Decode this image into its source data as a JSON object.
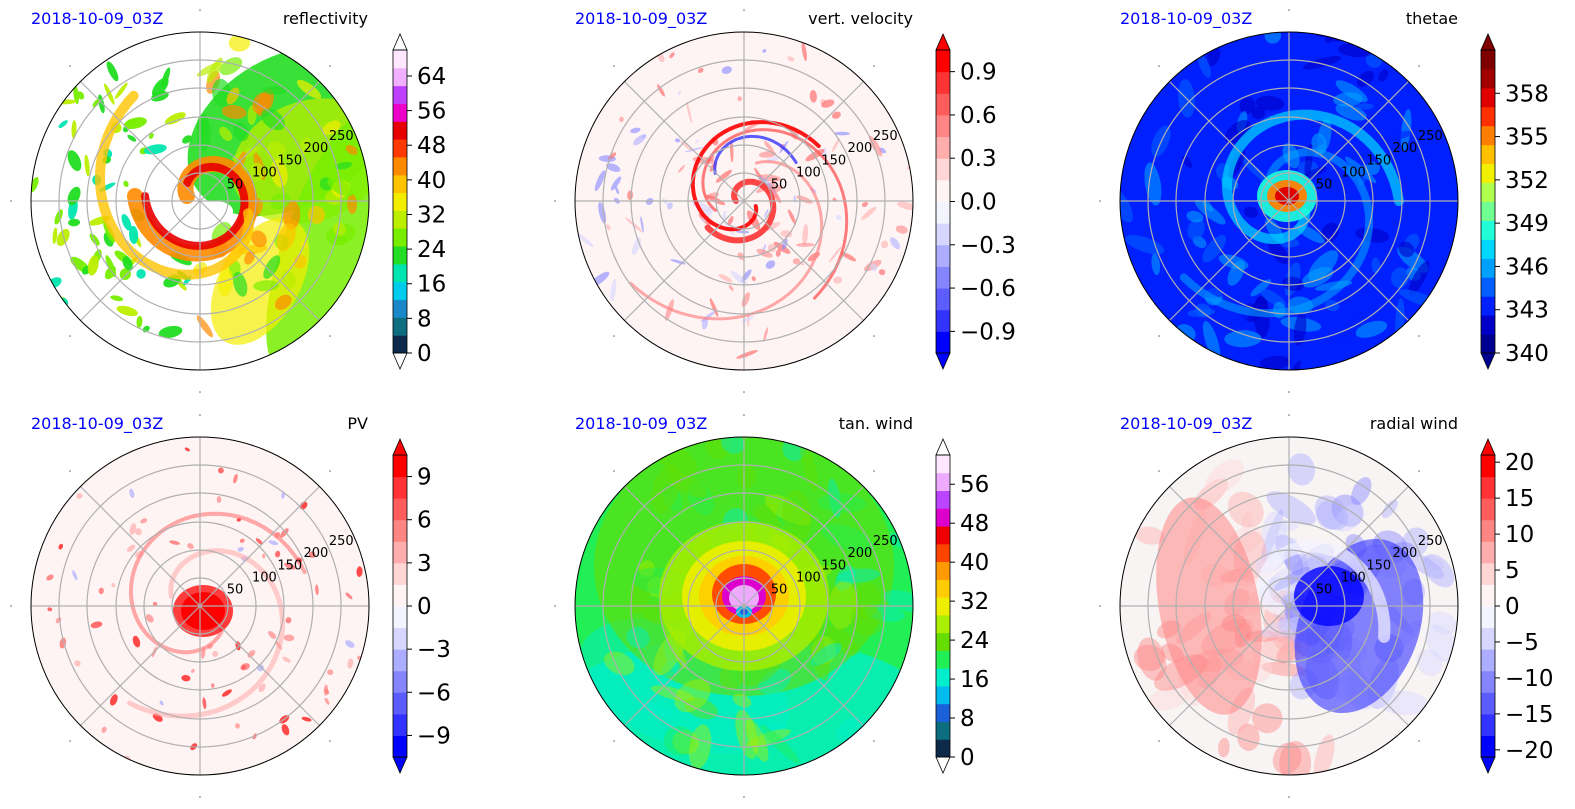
{
  "chart_data": [
    {
      "type": "heatmap",
      "projection": "polar",
      "time_label": "2018-10-09_03Z",
      "title": "reflectivity",
      "radial_ticks": [
        "50",
        "100",
        "150",
        "200",
        "250"
      ],
      "colorbar": {
        "ticks": [
          "0",
          "8",
          "16",
          "24",
          "32",
          "40",
          "48",
          "56",
          "64"
        ],
        "tick_values": [
          0,
          8,
          16,
          24,
          32,
          40,
          48,
          56,
          64
        ],
        "range": [
          0,
          70
        ],
        "extend": "both",
        "colors": [
          "#0d2a4a",
          "#0d6e80",
          "#1a88c8",
          "#00ccee",
          "#00e6b0",
          "#22dd22",
          "#77ee00",
          "#bbee00",
          "#f3ee00",
          "#ffc400",
          "#ff8a00",
          "#ff3a00",
          "#e80000",
          "#ee00cc",
          "#c040ff",
          "#f0b0ff",
          "#ffe8ff"
        ]
      }
    },
    {
      "type": "heatmap",
      "projection": "polar",
      "time_label": "2018-10-09_03Z",
      "title": "vert. velocity",
      "radial_ticks": [
        "50",
        "100",
        "150",
        "200",
        "250"
      ],
      "colorbar": {
        "ticks": [
          "0.9",
          "0.6",
          "0.3",
          "0.0",
          "−0.3",
          "−0.6",
          "−0.9"
        ],
        "tick_values": [
          0.9,
          0.6,
          0.3,
          0.0,
          -0.3,
          -0.6,
          -0.9
        ],
        "range": [
          -1.05,
          1.05
        ],
        "extend": "both",
        "colors": [
          "#0000ff",
          "#3333ff",
          "#5c5cff",
          "#8585ff",
          "#adadff",
          "#d6d6ff",
          "#f4f4ff",
          "#fff4f4",
          "#ffd6d6",
          "#ffadad",
          "#ff8585",
          "#ff5c5c",
          "#ff3333",
          "#ff0000"
        ]
      }
    },
    {
      "type": "heatmap",
      "projection": "polar",
      "time_label": "2018-10-09_03Z",
      "title": "thetae",
      "radial_ticks": [
        "50",
        "100",
        "150",
        "200",
        "250"
      ],
      "colorbar": {
        "ticks": [
          "340",
          "343",
          "346",
          "349",
          "352",
          "355",
          "358"
        ],
        "tick_values": [
          340,
          343,
          346,
          349,
          352,
          355,
          358
        ],
        "range": [
          340,
          361
        ],
        "extend": "both",
        "colors": [
          "#000090",
          "#0000c8",
          "#0020ff",
          "#0060ff",
          "#00a0ff",
          "#00d8ff",
          "#20ffd8",
          "#70ff90",
          "#b0ff50",
          "#f0f000",
          "#ffc000",
          "#ff8000",
          "#ff3000",
          "#e00000",
          "#a00000",
          "#800000"
        ]
      }
    },
    {
      "type": "heatmap",
      "projection": "polar",
      "time_label": "2018-10-09_03Z",
      "title": "PV",
      "radial_ticks": [
        "50",
        "100",
        "150",
        "200",
        "250"
      ],
      "colorbar": {
        "ticks": [
          "9",
          "6",
          "3",
          "0",
          "−3",
          "−6",
          "−9"
        ],
        "tick_values": [
          9,
          6,
          3,
          0,
          -3,
          -6,
          -9
        ],
        "range": [
          -10.5,
          10.5
        ],
        "extend": "both",
        "colors": [
          "#0000ff",
          "#3333ff",
          "#5c5cff",
          "#8585ff",
          "#adadff",
          "#d6d6ff",
          "#f4f4ff",
          "#fff4f4",
          "#ffd6d6",
          "#ffadad",
          "#ff8585",
          "#ff5c5c",
          "#ff3333",
          "#ff0000"
        ]
      }
    },
    {
      "type": "heatmap",
      "projection": "polar",
      "time_label": "2018-10-09_03Z",
      "title": "tan. wind",
      "radial_ticks": [
        "50",
        "100",
        "150",
        "200",
        "250"
      ],
      "colorbar": {
        "ticks": [
          "0",
          "8",
          "16",
          "24",
          "32",
          "40",
          "48",
          "56"
        ],
        "tick_values": [
          0,
          8,
          16,
          24,
          32,
          40,
          48,
          56
        ],
        "range": [
          0,
          62
        ],
        "extend": "both",
        "colors": [
          "#0d2a4a",
          "#0d6e80",
          "#1a60d8",
          "#00bbee",
          "#00eecc",
          "#22ee55",
          "#66dd00",
          "#aaee00",
          "#eeee00",
          "#ffcc00",
          "#ff9900",
          "#ff4400",
          "#ee0000",
          "#dd00cc",
          "#bb44ff",
          "#eeaaff",
          "#ffe8ff"
        ]
      }
    },
    {
      "type": "heatmap",
      "projection": "polar",
      "time_label": "2018-10-09_03Z",
      "title": "radial wind",
      "radial_ticks": [
        "50",
        "100",
        "150",
        "200",
        "250"
      ],
      "colorbar": {
        "ticks": [
          "20",
          "15",
          "10",
          "5",
          "0",
          "−5",
          "−10",
          "−15",
          "−20"
        ],
        "tick_values": [
          20,
          15,
          10,
          5,
          0,
          -5,
          -10,
          -15,
          -20
        ],
        "range": [
          -21,
          21
        ],
        "extend": "both",
        "colors": [
          "#0000ff",
          "#3333ff",
          "#5c5cff",
          "#8585ff",
          "#adadff",
          "#d6d6ff",
          "#f4f4ff",
          "#fff4f4",
          "#ffd6d6",
          "#ffadad",
          "#ff8585",
          "#ff5c5c",
          "#ff3333",
          "#ff0000"
        ]
      }
    }
  ]
}
